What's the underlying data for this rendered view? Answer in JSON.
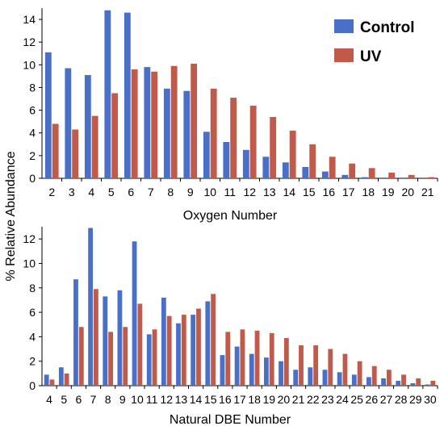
{
  "colors": {
    "control": "#4a6fc7",
    "uv": "#c05a4a",
    "axis": "#000000"
  },
  "legend": {
    "control": "Control",
    "uv": "UV",
    "position": "top-right"
  },
  "shared_ylabel": "% Relative Abundance",
  "chart_data": [
    {
      "type": "bar",
      "xlabel": "Oxygen Number",
      "ylabel": "% Relative Abundance",
      "ylim": [
        0,
        15
      ],
      "yticks": [
        0,
        2,
        4,
        6,
        8,
        10,
        12,
        14
      ],
      "categories": [
        "2",
        "3",
        "4",
        "5",
        "6",
        "7",
        "8",
        "9",
        "10",
        "11",
        "12",
        "13",
        "14",
        "15",
        "16",
        "17",
        "18",
        "19",
        "20",
        "21"
      ],
      "series": [
        {
          "name": "Control",
          "values": [
            11.1,
            9.7,
            9.1,
            14.8,
            14.6,
            9.8,
            7.9,
            7.7,
            4.1,
            3.2,
            2.5,
            1.9,
            1.4,
            1.0,
            0.6,
            0.3,
            0.1,
            0.0,
            0.0,
            0.0
          ]
        },
        {
          "name": "UV",
          "values": [
            4.8,
            4.3,
            5.5,
            7.5,
            9.6,
            9.4,
            9.9,
            10.1,
            7.9,
            7.1,
            6.4,
            5.4,
            4.2,
            3.0,
            1.9,
            1.3,
            0.9,
            0.5,
            0.3,
            0.1
          ]
        }
      ]
    },
    {
      "type": "bar",
      "xlabel": "Natural DBE Number",
      "ylabel": "% Relative Abundance",
      "ylim": [
        0,
        13
      ],
      "yticks": [
        0,
        2,
        4,
        6,
        8,
        10,
        12
      ],
      "categories": [
        "4",
        "5",
        "6",
        "7",
        "8",
        "9",
        "10",
        "11",
        "12",
        "13",
        "14",
        "15",
        "16",
        "17",
        "18",
        "19",
        "20",
        "21",
        "22",
        "23",
        "24",
        "25",
        "26",
        "27",
        "28",
        "29",
        "30"
      ],
      "series": [
        {
          "name": "Control",
          "values": [
            0.9,
            1.5,
            8.7,
            12.9,
            7.3,
            7.8,
            11.8,
            4.2,
            7.2,
            5.1,
            5.8,
            6.9,
            2.5,
            3.2,
            2.6,
            2.3,
            2.0,
            1.3,
            1.5,
            1.3,
            1.1,
            0.9,
            0.7,
            0.6,
            0.4,
            0.2,
            0.1
          ]
        },
        {
          "name": "UV",
          "values": [
            0.5,
            1.0,
            4.8,
            7.9,
            4.4,
            4.8,
            6.7,
            4.6,
            5.7,
            5.8,
            6.3,
            7.5,
            4.4,
            4.6,
            4.5,
            4.3,
            3.9,
            3.3,
            3.3,
            3.0,
            2.6,
            2.0,
            1.6,
            1.3,
            0.9,
            0.6,
            0.4
          ]
        }
      ]
    }
  ]
}
